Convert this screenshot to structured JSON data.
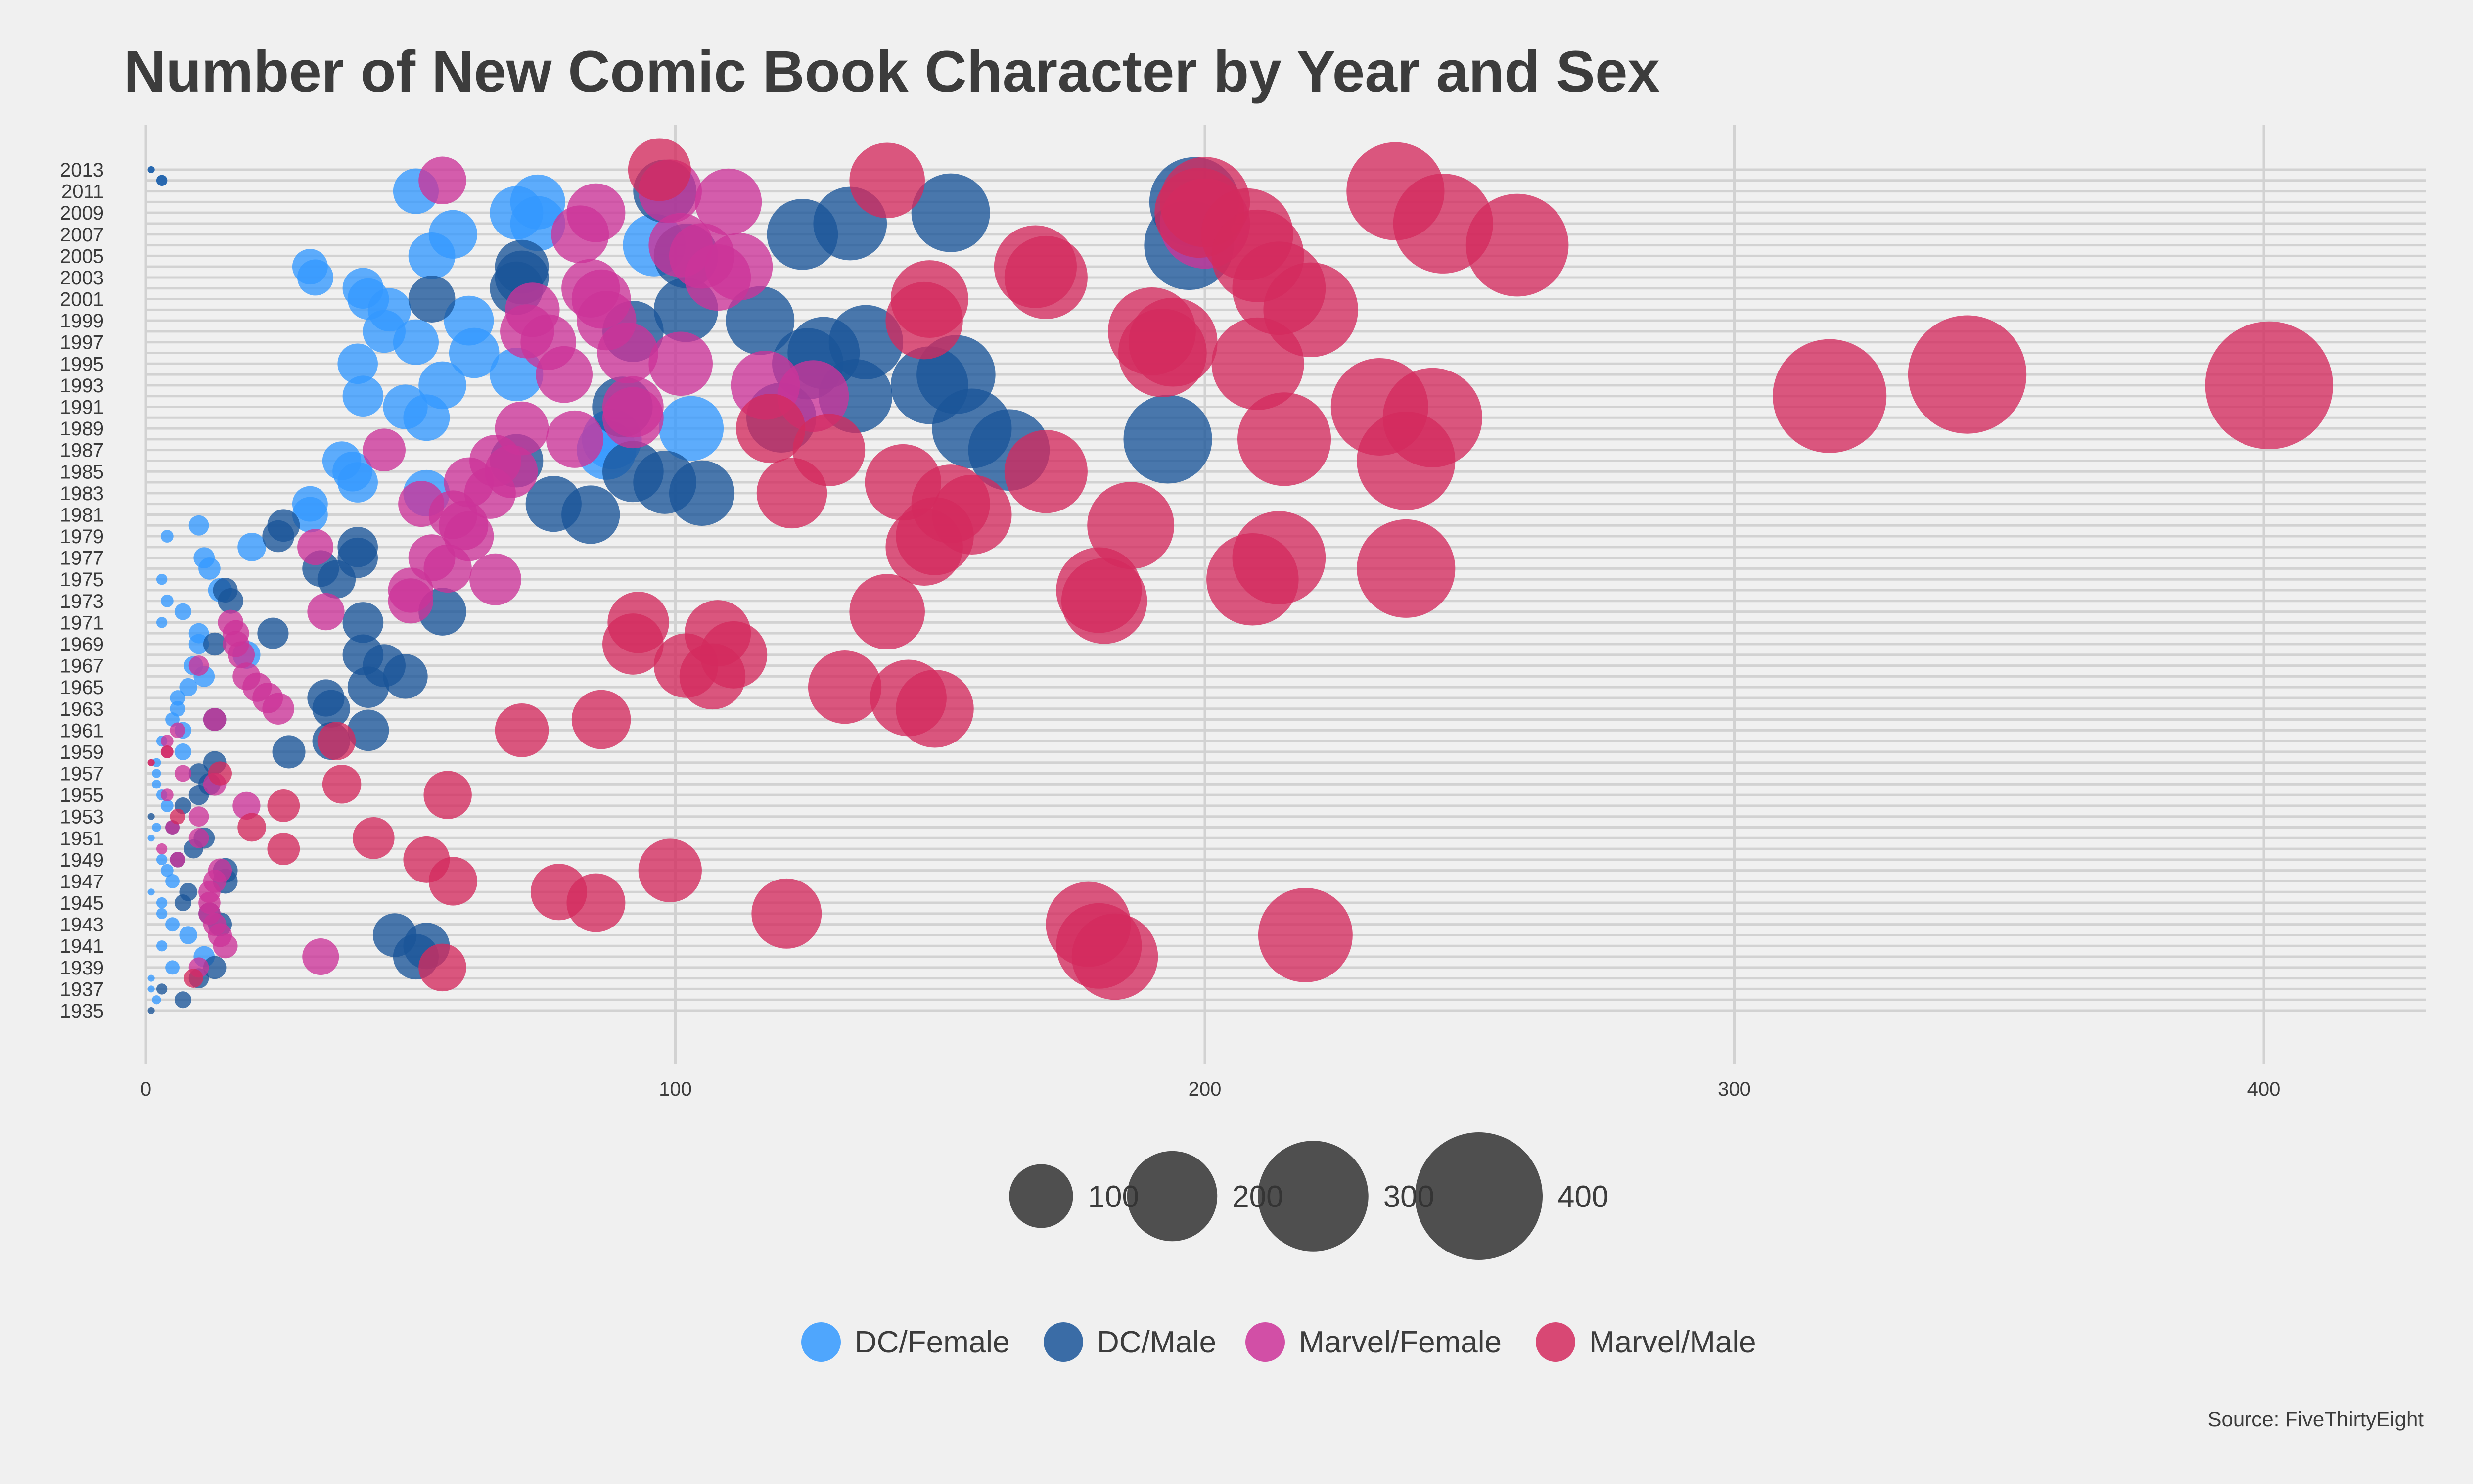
{
  "chart_data": {
    "type": "scatter",
    "title": "Number of New Comic Book Character by Year and Sex",
    "source": "Source: FiveThirtyEight",
    "xlabel": "",
    "ylabel": "",
    "xlim": [
      0,
      430
    ],
    "x_ticks": [
      "0",
      "100",
      "200",
      "300",
      "400"
    ],
    "y_ticks": [
      "2013",
      "2011",
      "2009",
      "2007",
      "2005",
      "2003",
      "2001",
      "1999",
      "1997",
      "1995",
      "1993",
      "1991",
      "1989",
      "1987",
      "1985",
      "1983",
      "1981",
      "1979",
      "1977",
      "1975",
      "1973",
      "1971",
      "1969",
      "1967",
      "1965",
      "1963",
      "1961",
      "1959",
      "1957",
      "1955",
      "1953",
      "1951",
      "1949",
      "1947",
      "1945",
      "1943",
      "1941",
      "1939",
      "1937",
      "1935"
    ],
    "grid": true,
    "size_legend": {
      "labels": [
        "100",
        "200",
        "300",
        "400"
      ],
      "values": [
        100,
        200,
        300,
        400
      ]
    },
    "color_legend_position": "bottom",
    "series": [
      {
        "name": "DC/Female",
        "color": "#3399ff",
        "points": [
          [
            2013,
            1
          ],
          [
            2012,
            3
          ],
          [
            2011,
            51
          ],
          [
            2010,
            74
          ],
          [
            2009,
            70
          ],
          [
            2008,
            74
          ],
          [
            2007,
            58
          ],
          [
            2006,
            96
          ],
          [
            2005,
            54
          ],
          [
            2004,
            31
          ],
          [
            2003,
            32
          ],
          [
            2002,
            41
          ],
          [
            2001,
            42
          ],
          [
            2000,
            46
          ],
          [
            1999,
            61
          ],
          [
            1998,
            45
          ],
          [
            1997,
            51
          ],
          [
            1996,
            62
          ],
          [
            1995,
            40
          ],
          [
            1994,
            70
          ],
          [
            1993,
            56
          ],
          [
            1992,
            41
          ],
          [
            1991,
            49
          ],
          [
            1990,
            53
          ],
          [
            1989,
            103
          ],
          [
            1988,
            88
          ],
          [
            1987,
            87
          ],
          [
            1986,
            37
          ],
          [
            1985,
            39
          ],
          [
            1984,
            40
          ],
          [
            1983,
            53
          ],
          [
            1982,
            31
          ],
          [
            1981,
            31
          ],
          [
            1980,
            10
          ],
          [
            1979,
            4
          ],
          [
            1978,
            20
          ],
          [
            1977,
            11
          ],
          [
            1976,
            12
          ],
          [
            1975,
            3
          ],
          [
            1974,
            14
          ],
          [
            1973,
            4
          ],
          [
            1972,
            7
          ],
          [
            1971,
            3
          ],
          [
            1970,
            10
          ],
          [
            1969,
            10
          ],
          [
            1968,
            19
          ],
          [
            1967,
            9
          ],
          [
            1966,
            11
          ],
          [
            1965,
            8
          ],
          [
            1964,
            6
          ],
          [
            1963,
            6
          ],
          [
            1962,
            5
          ],
          [
            1961,
            7
          ],
          [
            1960,
            3
          ],
          [
            1959,
            7
          ],
          [
            1958,
            2
          ],
          [
            1957,
            2
          ],
          [
            1956,
            2
          ],
          [
            1955,
            3
          ],
          [
            1954,
            4
          ],
          [
            1952,
            2
          ],
          [
            1951,
            1
          ],
          [
            1949,
            3
          ],
          [
            1948,
            4
          ],
          [
            1947,
            5
          ],
          [
            1946,
            1
          ],
          [
            1945,
            3
          ],
          [
            1944,
            3
          ],
          [
            1943,
            5
          ],
          [
            1942,
            8
          ],
          [
            1941,
            3
          ],
          [
            1940,
            11
          ],
          [
            1939,
            5
          ],
          [
            1938,
            1
          ],
          [
            1937,
            1
          ],
          [
            1936,
            2
          ]
        ]
      },
      {
        "name": "DC/Male",
        "color": "#1a5599",
        "points": [
          [
            2013,
            1
          ],
          [
            2012,
            3
          ],
          [
            2011,
            98
          ],
          [
            2010,
            198
          ],
          [
            2009,
            152
          ],
          [
            2008,
            133
          ],
          [
            2007,
            124
          ],
          [
            2006,
            197
          ],
          [
            2005,
            102
          ],
          [
            2004,
            71
          ],
          [
            2003,
            71
          ],
          [
            2002,
            70
          ],
          [
            2001,
            54
          ],
          [
            2000,
            102
          ],
          [
            1999,
            116
          ],
          [
            1998,
            92
          ],
          [
            1997,
            136
          ],
          [
            1996,
            128
          ],
          [
            1995,
            125
          ],
          [
            1994,
            153
          ],
          [
            1993,
            148
          ],
          [
            1992,
            134
          ],
          [
            1991,
            90
          ],
          [
            1990,
            120
          ],
          [
            1989,
            156
          ],
          [
            1988,
            193
          ],
          [
            1987,
            163
          ],
          [
            1986,
            70
          ],
          [
            1985,
            92
          ],
          [
            1984,
            98
          ],
          [
            1983,
            105
          ],
          [
            1982,
            77
          ],
          [
            1981,
            84
          ],
          [
            1980,
            26
          ],
          [
            1979,
            25
          ],
          [
            1978,
            40
          ],
          [
            1977,
            40
          ],
          [
            1976,
            33
          ],
          [
            1975,
            36
          ],
          [
            1974,
            15
          ],
          [
            1973,
            16
          ],
          [
            1972,
            56
          ],
          [
            1971,
            41
          ],
          [
            1970,
            24
          ],
          [
            1969,
            13
          ],
          [
            1968,
            41
          ],
          [
            1967,
            45
          ],
          [
            1966,
            49
          ],
          [
            1965,
            42
          ],
          [
            1964,
            34
          ],
          [
            1963,
            35
          ],
          [
            1962,
            13
          ],
          [
            1961,
            42
          ],
          [
            1960,
            35
          ],
          [
            1959,
            27
          ],
          [
            1958,
            13
          ],
          [
            1957,
            10
          ],
          [
            1956,
            12
          ],
          [
            1955,
            10
          ],
          [
            1954,
            7
          ],
          [
            1953,
            1
          ],
          [
            1952,
            5
          ],
          [
            1951,
            11
          ],
          [
            1950,
            9
          ],
          [
            1949,
            6
          ],
          [
            1948,
            15
          ],
          [
            1947,
            15
          ],
          [
            1946,
            8
          ],
          [
            1945,
            7
          ],
          [
            1944,
            12
          ],
          [
            1943,
            14
          ],
          [
            1942,
            47
          ],
          [
            1941,
            53
          ],
          [
            1940,
            51
          ],
          [
            1939,
            13
          ],
          [
            1938,
            10
          ],
          [
            1937,
            3
          ],
          [
            1936,
            7
          ],
          [
            1935,
            1
          ]
        ]
      },
      {
        "name": "Marvel/Female",
        "color": "#cc3399",
        "points": [
          [
            2012,
            56
          ],
          [
            2011,
            99
          ],
          [
            2010,
            110
          ],
          [
            2009,
            85
          ],
          [
            2008,
            200
          ],
          [
            2007,
            82
          ],
          [
            2006,
            101
          ],
          [
            2005,
            105
          ],
          [
            2004,
            112
          ],
          [
            2003,
            108
          ],
          [
            2002,
            84
          ],
          [
            2001,
            86
          ],
          [
            2000,
            73
          ],
          [
            1999,
            87
          ],
          [
            1998,
            72
          ],
          [
            1997,
            76
          ],
          [
            1996,
            91
          ],
          [
            1995,
            101
          ],
          [
            1994,
            79
          ],
          [
            1993,
            117
          ],
          [
            1992,
            126
          ],
          [
            1991,
            92
          ],
          [
            1990,
            92
          ],
          [
            1989,
            71
          ],
          [
            1988,
            81
          ],
          [
            1987,
            45
          ],
          [
            1986,
            66
          ],
          [
            1985,
            69
          ],
          [
            1984,
            61
          ],
          [
            1983,
            65
          ],
          [
            1982,
            52
          ],
          [
            1981,
            58
          ],
          [
            1980,
            60
          ],
          [
            1979,
            61
          ],
          [
            1978,
            32
          ],
          [
            1977,
            54
          ],
          [
            1976,
            57
          ],
          [
            1975,
            66
          ],
          [
            1974,
            50
          ],
          [
            1973,
            50
          ],
          [
            1972,
            34
          ],
          [
            1971,
            16
          ],
          [
            1970,
            17
          ],
          [
            1969,
            17
          ],
          [
            1968,
            18
          ],
          [
            1967,
            10
          ],
          [
            1966,
            19
          ],
          [
            1965,
            21
          ],
          [
            1964,
            23
          ],
          [
            1963,
            25
          ],
          [
            1962,
            13
          ],
          [
            1961,
            6
          ],
          [
            1960,
            4
          ],
          [
            1959,
            4
          ],
          [
            1958,
            1
          ],
          [
            1957,
            7
          ],
          [
            1956,
            13
          ],
          [
            1955,
            4
          ],
          [
            1954,
            19
          ],
          [
            1953,
            10
          ],
          [
            1952,
            5
          ],
          [
            1951,
            10
          ],
          [
            1950,
            3
          ],
          [
            1949,
            6
          ],
          [
            1948,
            14
          ],
          [
            1947,
            13
          ],
          [
            1946,
            12
          ],
          [
            1945,
            12
          ],
          [
            1944,
            12
          ],
          [
            1943,
            13
          ],
          [
            1942,
            14
          ],
          [
            1941,
            15
          ],
          [
            1940,
            33
          ],
          [
            1939,
            10
          ]
        ]
      },
      {
        "name": "Marvel/Male",
        "color": "#d42a5e",
        "points": [
          [
            2013,
            97
          ],
          [
            2012,
            140
          ],
          [
            2011,
            236
          ],
          [
            2010,
            200
          ],
          [
            2009,
            199
          ],
          [
            2008,
            245
          ],
          [
            2007,
            208
          ],
          [
            2006,
            259
          ],
          [
            2005,
            210
          ],
          [
            2004,
            168
          ],
          [
            2003,
            170
          ],
          [
            2002,
            214
          ],
          [
            2001,
            148
          ],
          [
            2000,
            220
          ],
          [
            1999,
            147
          ],
          [
            1998,
            190
          ],
          [
            1997,
            194
          ],
          [
            1996,
            192
          ],
          [
            1995,
            210
          ],
          [
            1994,
            344
          ],
          [
            1993,
            401
          ],
          [
            1992,
            318
          ],
          [
            1991,
            233
          ],
          [
            1990,
            243
          ],
          [
            1989,
            118
          ],
          [
            1988,
            215
          ],
          [
            1987,
            129
          ],
          [
            1986,
            238
          ],
          [
            1985,
            170
          ],
          [
            1984,
            143
          ],
          [
            1983,
            122
          ],
          [
            1982,
            152
          ],
          [
            1981,
            156
          ],
          [
            1980,
            186
          ],
          [
            1979,
            149
          ],
          [
            1978,
            147
          ],
          [
            1977,
            214
          ],
          [
            1976,
            238
          ],
          [
            1975,
            209
          ],
          [
            1974,
            180
          ],
          [
            1973,
            181
          ],
          [
            1972,
            140
          ],
          [
            1971,
            93
          ],
          [
            1970,
            108
          ],
          [
            1969,
            92
          ],
          [
            1968,
            111
          ],
          [
            1967,
            102
          ],
          [
            1966,
            107
          ],
          [
            1965,
            132
          ],
          [
            1964,
            144
          ],
          [
            1963,
            149
          ],
          [
            1962,
            86
          ],
          [
            1961,
            71
          ],
          [
            1960,
            36
          ],
          [
            1959,
            4
          ],
          [
            1958,
            1
          ],
          [
            1957,
            14
          ],
          [
            1956,
            37
          ],
          [
            1955,
            57
          ],
          [
            1954,
            26
          ],
          [
            1953,
            6
          ],
          [
            1952,
            20
          ],
          [
            1951,
            43
          ],
          [
            1950,
            26
          ],
          [
            1949,
            53
          ],
          [
            1948,
            99
          ],
          [
            1947,
            58
          ],
          [
            1946,
            78
          ],
          [
            1945,
            85
          ],
          [
            1944,
            121
          ],
          [
            1943,
            178
          ],
          [
            1942,
            219
          ],
          [
            1941,
            180
          ],
          [
            1940,
            183
          ],
          [
            1939,
            56
          ],
          [
            1938,
            9
          ]
        ]
      }
    ]
  }
}
